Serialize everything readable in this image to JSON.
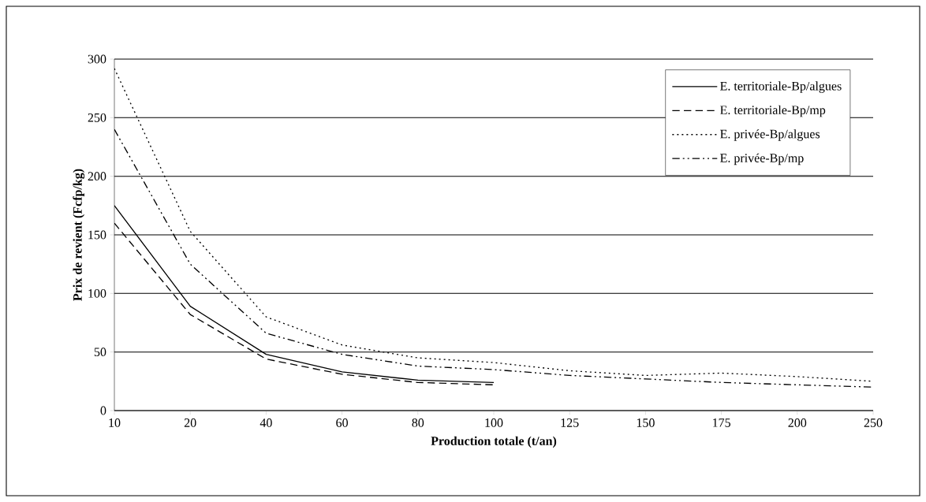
{
  "chart_data": {
    "type": "line",
    "xlabel": "Production totale (t/an)",
    "ylabel": "Prix de revient (Fcfp/kg)",
    "categories": [
      "10",
      "20",
      "40",
      "60",
      "80",
      "100",
      "125",
      "150",
      "175",
      "200",
      "250"
    ],
    "series": [
      {
        "name": "E. territoriale-Bp/algues",
        "color": "#000000",
        "line_style": "solid",
        "values": [
          175,
          89,
          48,
          33,
          26,
          24,
          null,
          null,
          null,
          null,
          null
        ]
      },
      {
        "name": "E. territoriale-Bp/mp",
        "color": "#000000",
        "line_style": "dashed",
        "values": [
          160,
          82,
          44,
          31,
          24,
          22,
          null,
          null,
          null,
          null,
          null
        ]
      },
      {
        "name": "E. privée-Bp/algues",
        "color": "#000000",
        "line_style": "dotted",
        "values": [
          292,
          153,
          80,
          56,
          45,
          41,
          34,
          30,
          32,
          29,
          25
        ]
      },
      {
        "name": "E. privée-Bp/mp",
        "color": "#000000",
        "line_style": "dashdotted",
        "values": [
          240,
          125,
          66,
          48,
          38,
          35,
          30,
          27,
          24,
          22,
          20
        ]
      }
    ],
    "ylim": [
      0,
      300
    ],
    "yticks": [
      0,
      50,
      100,
      150,
      200,
      250,
      300
    ],
    "grid": "y",
    "legend": "top right",
    "marker": "none"
  }
}
